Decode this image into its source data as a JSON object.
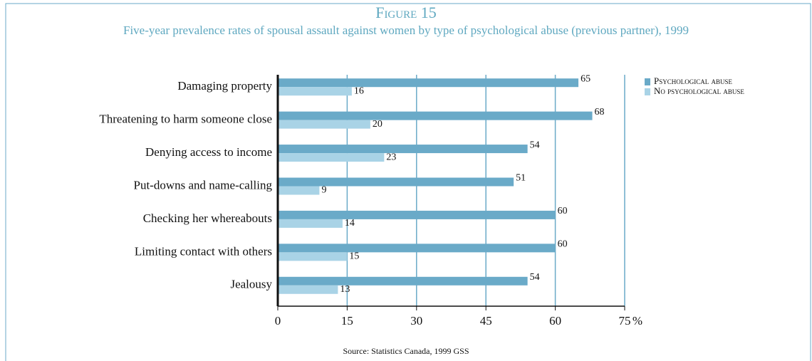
{
  "chart_data": {
    "type": "hbar",
    "title": "Figure 15",
    "subtitle": "Five-year prevalence rates of spousal assault against women by type of psychological abuse (previous partner), 1999",
    "source": "Source: Statistics Canada, 1999 GSS",
    "xlabel": "%",
    "categories": [
      "Damaging property",
      "Threatening to harm someone close",
      "Denying access to income",
      "Put-downs and name-calling",
      "Checking her whereabouts",
      "Limiting contact with others",
      "Jealousy"
    ],
    "series": [
      {
        "name": "Psychological abuse",
        "color": "#6aaac8",
        "values": [
          65,
          68,
          54,
          51,
          60,
          60,
          54
        ]
      },
      {
        "name": "No psychological abuse",
        "color": "#a9d3e6",
        "values": [
          16,
          20,
          23,
          9,
          14,
          15,
          13
        ]
      }
    ],
    "xlim": [
      0,
      75
    ],
    "xticks": [
      0,
      15,
      30,
      45,
      60,
      75
    ],
    "grid": true,
    "legend": "right"
  }
}
